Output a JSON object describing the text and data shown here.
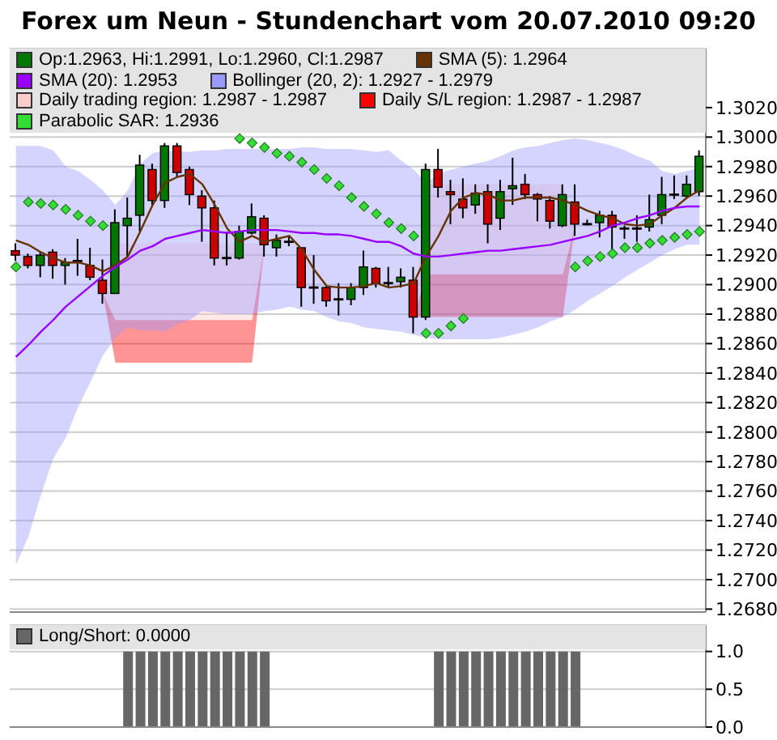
{
  "chart_data": [
    {
      "type": "candlestick",
      "title": "Forex um Neun - Stundenchart vom 20.07.2010 09:20",
      "legend": "top",
      "grid": "y",
      "tick_labels": "y",
      "categories": [
        null,
        null,
        null,
        null,
        null,
        null,
        null,
        null,
        null,
        null,
        null,
        null,
        null,
        null,
        null,
        null,
        null,
        null,
        null,
        null,
        null,
        null,
        null,
        null,
        null,
        null,
        null,
        null,
        null,
        null,
        null,
        null,
        null,
        null,
        null,
        null,
        null,
        null,
        null,
        null,
        null,
        null,
        null,
        null,
        null,
        null,
        null,
        null,
        null,
        null,
        null,
        null,
        null,
        null,
        null,
        null
      ],
      "ylim": [
        1.2678,
        1.306
      ],
      "yticks": [
        {
          "value": 1.268,
          "label": "1.2680"
        },
        {
          "value": 1.27,
          "label": "1.2700"
        },
        {
          "value": 1.272,
          "label": "1.2720"
        },
        {
          "value": 1.274,
          "label": "1.2740"
        },
        {
          "value": 1.276,
          "label": "1.2760"
        },
        {
          "value": 1.278,
          "label": "1.2780"
        },
        {
          "value": 1.28,
          "label": "1.2800"
        },
        {
          "value": 1.282,
          "label": "1.2820"
        },
        {
          "value": 1.284,
          "label": "1.2840"
        },
        {
          "value": 1.286,
          "label": "1.2860"
        },
        {
          "value": 1.288,
          "label": "1.2880"
        },
        {
          "value": 1.29,
          "label": "1.2900"
        },
        {
          "value": 1.292,
          "label": "1.2920"
        },
        {
          "value": 1.294,
          "label": "1.2940"
        },
        {
          "value": 1.296,
          "label": "1.2960"
        },
        {
          "value": 1.298,
          "label": "1.2980"
        },
        {
          "value": 1.3,
          "label": "1.3000"
        },
        {
          "value": 1.302,
          "label": "1.3020"
        }
      ],
      "series": [
        {
          "name": "Op:1.2963, Hi:1.2991, Lo:1.2960, Cl:1.2987",
          "color": "#007700",
          "colors": [
            "#cc0000",
            "#cc0000",
            "#007700",
            "#cc0000",
            "#007700",
            "#000000",
            "#cc0000",
            "#cc0000",
            "#007700",
            "#007700",
            "#007700",
            "#cc0000",
            "#007700",
            "#cc0000",
            "#cc0000",
            "#cc0000",
            "#cc0000",
            "#000000",
            "#007700",
            "#007700",
            "#cc0000",
            "#007700",
            "#000000",
            "#cc0000",
            "#000000",
            "#cc0000",
            "#000000",
            "#007700",
            "#007700",
            "#cc0000",
            "#000000",
            "#007700",
            "#cc0000",
            "#007700",
            "#cc0000",
            "#cc0000",
            "#cc0000",
            "#007700",
            "#cc0000",
            "#007700",
            "#007700",
            "#cc0000",
            "#cc0000",
            "#cc0000",
            "#007700",
            "#cc0000",
            "#000000",
            "#007700",
            "#cc0000",
            "#000000",
            "#000000",
            "#007700",
            "#007700",
            "#000000",
            "#007700",
            "#007700"
          ],
          "ohlc": [
            [
              1.2923,
              1.2928,
              1.2916,
              1.292
            ],
            [
              1.2919,
              1.2921,
              1.2911,
              1.2913
            ],
            [
              1.2913,
              1.2922,
              1.2905,
              1.292
            ],
            [
              1.2922,
              1.2924,
              1.2904,
              1.2913
            ],
            [
              1.2913,
              1.2918,
              1.29,
              1.2915
            ],
            [
              1.2916,
              1.2931,
              1.2906,
              1.2916
            ],
            [
              1.2913,
              1.2925,
              1.2903,
              1.2905
            ],
            [
              1.2903,
              1.2917,
              1.2887,
              1.2894
            ],
            [
              1.2894,
              1.2951,
              1.2894,
              1.2942
            ],
            [
              1.294,
              1.2959,
              1.2919,
              1.2945
            ],
            [
              1.2947,
              1.2988,
              1.2936,
              1.2981
            ],
            [
              1.2978,
              1.2982,
              1.2954,
              1.2957
            ],
            [
              1.2957,
              1.2996,
              1.2952,
              1.2994
            ],
            [
              1.2994,
              1.2996,
              1.2973,
              1.2976
            ],
            [
              1.2978,
              1.298,
              1.2954,
              1.2961
            ],
            [
              1.296,
              1.2964,
              1.2929,
              1.2952
            ],
            [
              1.2952,
              1.2957,
              1.2913,
              1.2918
            ],
            [
              1.2918,
              1.2936,
              1.2913,
              1.2918
            ],
            [
              1.2918,
              1.294,
              1.2917,
              1.2936
            ],
            [
              1.2935,
              1.2955,
              1.2934,
              1.2946
            ],
            [
              1.2945,
              1.2947,
              1.2919,
              1.2927
            ],
            [
              1.2925,
              1.2934,
              1.2919,
              1.293
            ],
            [
              1.2929,
              1.2933,
              1.2926,
              1.2929
            ],
            [
              1.2925,
              1.2925,
              1.2885,
              1.2898
            ],
            [
              1.2898,
              1.292,
              1.2887,
              1.2898
            ],
            [
              1.2898,
              1.2899,
              1.2885,
              1.2889
            ],
            [
              1.289,
              1.2901,
              1.2879,
              1.289
            ],
            [
              1.289,
              1.2901,
              1.2886,
              1.2898
            ],
            [
              1.2898,
              1.2923,
              1.2893,
              1.2912
            ],
            [
              1.2911,
              1.2912,
              1.2898,
              1.2901
            ],
            [
              1.2901,
              1.2912,
              1.2898,
              1.2901
            ],
            [
              1.2902,
              1.2911,
              1.2898,
              1.2905
            ],
            [
              1.2903,
              1.2912,
              1.2867,
              1.2878
            ],
            [
              1.2878,
              1.2982,
              1.2876,
              1.2978
            ],
            [
              1.2978,
              1.2992,
              1.2959,
              1.2966
            ],
            [
              1.2963,
              1.2971,
              1.2941,
              1.2961
            ],
            [
              1.2958,
              1.2972,
              1.2945,
              1.2952
            ],
            [
              1.2954,
              1.2968,
              1.2948,
              1.2962
            ],
            [
              1.2963,
              1.2968,
              1.2928,
              1.2941
            ],
            [
              1.2945,
              1.2971,
              1.2937,
              1.2963
            ],
            [
              1.2965,
              1.2986,
              1.2954,
              1.2967
            ],
            [
              1.2968,
              1.2975,
              1.2958,
              1.2961
            ],
            [
              1.2961,
              1.2962,
              1.2943,
              1.2958
            ],
            [
              1.2957,
              1.296,
              1.2938,
              1.2943
            ],
            [
              1.294,
              1.2968,
              1.2939,
              1.2961
            ],
            [
              1.2956,
              1.2968,
              1.2933,
              1.2941
            ],
            [
              1.2941,
              1.2944,
              1.294,
              1.2941
            ],
            [
              1.2942,
              1.295,
              1.2932,
              1.2947
            ],
            [
              1.2947,
              1.295,
              1.2921,
              1.2939
            ],
            [
              1.2938,
              1.294,
              1.2931,
              1.2938
            ],
            [
              1.2938,
              1.2947,
              1.2929,
              1.2938
            ],
            [
              1.2939,
              1.2961,
              1.2936,
              1.2944
            ],
            [
              1.2947,
              1.2973,
              1.2941,
              1.2961
            ],
            [
              1.2961,
              1.2974,
              1.2958,
              1.2961
            ],
            [
              1.296,
              1.2974,
              1.2959,
              1.2968
            ],
            [
              1.2963,
              1.2991,
              1.296,
              1.2987
            ]
          ]
        },
        {
          "type": "line",
          "name": "SMA (5): 1.2964",
          "color": "#663300",
          "values": [
            1.293,
            1.2927,
            1.2922,
            1.2918,
            1.2915,
            1.2915,
            1.2913,
            1.2909,
            1.2913,
            1.2919,
            1.2936,
            1.2954,
            1.2969,
            1.2973,
            1.2975,
            1.2968,
            1.2954,
            1.2938,
            1.2929,
            1.2933,
            1.2929,
            1.2931,
            1.2933,
            1.2924,
            1.291,
            1.2899,
            1.2898,
            1.2898,
            1.2899,
            1.2901,
            1.2898,
            1.2899,
            1.2901,
            1.2919,
            1.2933,
            1.295,
            1.2959,
            1.2962,
            1.2961,
            1.2957,
            1.2957,
            1.2959,
            1.2959,
            1.2959,
            1.2957,
            1.2954,
            1.295,
            1.2947,
            1.2945,
            1.2941,
            1.294,
            1.2941,
            1.2947,
            1.2952,
            1.2959,
            1.2964
          ]
        },
        {
          "type": "line",
          "name": "SMA (20): 1.2953",
          "color": "#9900ff",
          "values": [
            1.2851,
            1.2859,
            1.2868,
            1.2876,
            1.2885,
            1.2892,
            1.2899,
            1.2906,
            1.2912,
            1.2917,
            1.2923,
            1.2926,
            1.2931,
            1.2933,
            1.2935,
            1.2937,
            1.2936,
            1.2935,
            1.2936,
            1.2937,
            1.2937,
            1.2937,
            1.2936,
            1.2935,
            1.2935,
            1.2934,
            1.2934,
            1.2933,
            1.2931,
            1.2929,
            1.2929,
            1.2926,
            1.2921,
            1.2919,
            1.2919,
            1.292,
            1.2921,
            1.2922,
            1.2923,
            1.2923,
            1.2924,
            1.2925,
            1.2926,
            1.2927,
            1.2929,
            1.2931,
            1.2933,
            1.2936,
            1.294,
            1.2942,
            1.2945,
            1.2947,
            1.295,
            1.2952,
            1.2953,
            1.2953
          ]
        },
        {
          "type": "line",
          "name": "Bollinger (20, 2): 1.2927 - 1.2979",
          "color": "#9999ff",
          "values": [
            null,
            null,
            null,
            null,
            null,
            null,
            null,
            null,
            null,
            null,
            null,
            null,
            null,
            null,
            null,
            null,
            null,
            null,
            null,
            null,
            null,
            null,
            null,
            null,
            null,
            null,
            null,
            null,
            null,
            null,
            null,
            null,
            null,
            null,
            null,
            null,
            null,
            null,
            null,
            null,
            null,
            null,
            null,
            null,
            null,
            null,
            null,
            null,
            null,
            null,
            null,
            null,
            null,
            null,
            null,
            null
          ],
          "upper": [
            1.2994,
            1.2994,
            1.2994,
            1.2991,
            1.298,
            1.2977,
            1.2971,
            1.2964,
            1.2954,
            1.2964,
            1.2982,
            1.2989,
            1.2991,
            1.299,
            1.299,
            1.2991,
            1.2991,
            1.2992,
            1.2992,
            1.2992,
            1.2992,
            1.2992,
            1.2992,
            1.2993,
            1.2993,
            1.2992,
            1.2992,
            1.2992,
            1.2991,
            1.299,
            1.2991,
            1.2984,
            1.2978,
            1.2969,
            1.2975,
            1.2978,
            1.298,
            1.2982,
            1.2984,
            1.2987,
            1.2991,
            1.2993,
            1.2994,
            1.2996,
            1.2998,
            1.2999,
            1.2998,
            1.2996,
            1.2994,
            1.2991,
            1.2987,
            1.2984,
            1.2977,
            1.2975,
            1.2977,
            1.2979
          ],
          "lower": [
            1.271,
            1.2729,
            1.2757,
            1.2782,
            1.2796,
            1.2817,
            1.2834,
            1.2852,
            1.2864,
            1.2871,
            1.2869,
            1.2869,
            1.2868,
            1.2873,
            1.2876,
            1.2882,
            1.2881,
            1.288,
            1.288,
            1.288,
            1.2882,
            1.2883,
            1.2885,
            1.2883,
            1.2882,
            1.2878,
            1.2875,
            1.2874,
            1.2871,
            1.287,
            1.2869,
            1.2868,
            1.2866,
            1.2864,
            1.2863,
            1.2863,
            1.2863,
            1.2863,
            1.2863,
            1.2864,
            1.2866,
            1.2868,
            1.2871,
            1.2875,
            1.2878,
            1.2883,
            1.2889,
            1.2894,
            1.2899,
            1.2905,
            1.291,
            1.2915,
            1.292,
            1.2924,
            1.2927,
            1.2927
          ]
        },
        {
          "type": "line",
          "name": "Daily trading region: 1.2987 - 1.2987",
          "color": "#ffcccc",
          "values": [
            null,
            null,
            null,
            null,
            null,
            null,
            null,
            null,
            null,
            null,
            null,
            null,
            null,
            null,
            null,
            null,
            null,
            null,
            null,
            null,
            null,
            null,
            null,
            null,
            null,
            null,
            null,
            null,
            null,
            null,
            null,
            null,
            null,
            null,
            null,
            null,
            null,
            null,
            null,
            null,
            null,
            null,
            null,
            null,
            null,
            null,
            null,
            null,
            null,
            null,
            null,
            null,
            null,
            null,
            null,
            null
          ],
          "upper": [
            null,
            null,
            null,
            null,
            null,
            null,
            null,
            1.2894,
            1.2928,
            1.2928,
            1.2928,
            1.2928,
            1.2928,
            1.2928,
            1.2928,
            1.2928,
            1.2928,
            1.2928,
            1.2928,
            1.2928,
            1.2927,
            null,
            null,
            null,
            null,
            null,
            null,
            null,
            null,
            null,
            null,
            null,
            1.2878,
            1.2968,
            1.2968,
            1.2968,
            1.2968,
            1.2968,
            1.2968,
            1.2968,
            1.2968,
            1.2968,
            1.2968,
            1.2968,
            1.2968,
            1.2941,
            null,
            null,
            null,
            null,
            null,
            null,
            null,
            null,
            null,
            null
          ],
          "lower": [
            null,
            null,
            null,
            null,
            null,
            null,
            null,
            1.2894,
            1.2876,
            1.2876,
            1.2876,
            1.2876,
            1.2876,
            1.2876,
            1.2876,
            1.2876,
            1.2876,
            1.2876,
            1.2876,
            1.2876,
            1.2927,
            null,
            null,
            null,
            null,
            null,
            null,
            null,
            null,
            null,
            null,
            null,
            1.2878,
            1.2907,
            1.2907,
            1.2907,
            1.2907,
            1.2907,
            1.2907,
            1.2907,
            1.2907,
            1.2907,
            1.2907,
            1.2907,
            1.2907,
            1.2941,
            null,
            null,
            null,
            null,
            null,
            null,
            null,
            null,
            null,
            null
          ]
        },
        {
          "type": "line",
          "name": "Daily S/L region: 1.2987 - 1.2987",
          "color": "#ff0000",
          "values": [
            null,
            null,
            null,
            null,
            null,
            null,
            null,
            null,
            null,
            null,
            null,
            null,
            null,
            null,
            null,
            null,
            null,
            null,
            null,
            null,
            null,
            null,
            null,
            null,
            null,
            null,
            null,
            null,
            null,
            null,
            null,
            null,
            null,
            null,
            null,
            null,
            null,
            null,
            null,
            null,
            null,
            null,
            null,
            null,
            null,
            null,
            null,
            null,
            null,
            null,
            null,
            null,
            null,
            null,
            null,
            null
          ],
          "upper": [
            null,
            null,
            null,
            null,
            null,
            null,
            null,
            1.2894,
            1.2876,
            1.2876,
            1.2876,
            1.2876,
            1.2876,
            1.2876,
            1.2876,
            1.2876,
            1.2876,
            1.2876,
            1.2876,
            1.2876,
            1.2927,
            null,
            null,
            null,
            null,
            null,
            null,
            null,
            null,
            null,
            null,
            null,
            1.2878,
            1.2907,
            1.2907,
            1.2907,
            1.2907,
            1.2907,
            1.2907,
            1.2907,
            1.2907,
            1.2907,
            1.2907,
            1.2907,
            1.2907,
            1.2941,
            null,
            null,
            null,
            null,
            null,
            null,
            null,
            null,
            null,
            null
          ],
          "lower": [
            null,
            null,
            null,
            null,
            null,
            null,
            null,
            1.2894,
            1.2847,
            1.2847,
            1.2847,
            1.2847,
            1.2847,
            1.2847,
            1.2847,
            1.2847,
            1.2847,
            1.2847,
            1.2847,
            1.2847,
            1.2927,
            null,
            null,
            null,
            null,
            null,
            null,
            null,
            null,
            null,
            null,
            null,
            1.2878,
            1.2878,
            1.2878,
            1.2878,
            1.2878,
            1.2878,
            1.2878,
            1.2878,
            1.2878,
            1.2878,
            1.2878,
            1.2878,
            1.2878,
            1.2941,
            null,
            null,
            null,
            null,
            null,
            null,
            null,
            null,
            null,
            null
          ]
        },
        {
          "type": "scatter",
          "name": "Parabolic SAR: 1.2936",
          "color": "#33dd33",
          "marker": "diamond",
          "values": [
            1.2912,
            1.2956,
            1.2955,
            1.2954,
            1.2951,
            1.2947,
            1.2943,
            1.294,
            null,
            null,
            null,
            null,
            null,
            null,
            null,
            null,
            null,
            null,
            1.2999,
            1.2996,
            1.2993,
            1.2989,
            1.2987,
            1.2983,
            1.2978,
            1.2972,
            1.2967,
            1.2959,
            1.2953,
            1.2948,
            1.2942,
            1.2938,
            1.2933,
            1.2867,
            1.2867,
            1.2872,
            1.2877,
            null,
            null,
            null,
            null,
            null,
            null,
            null,
            null,
            1.2912,
            1.2916,
            1.2919,
            1.2921,
            1.2925,
            1.2925,
            1.2928,
            1.293,
            1.2932,
            1.2934,
            1.2936
          ]
        }
      ]
    },
    {
      "type": "bar",
      "legend": "top",
      "grid": "y",
      "tick_labels": "y",
      "categories": [
        null,
        null,
        null,
        null,
        null,
        null,
        null,
        null,
        null,
        null,
        null,
        null,
        null,
        null,
        null,
        null,
        null,
        null,
        null,
        null,
        null,
        null,
        null,
        null,
        null,
        null,
        null,
        null,
        null,
        null,
        null,
        null,
        null,
        null,
        null,
        null,
        null,
        null,
        null,
        null,
        null,
        null,
        null,
        null,
        null,
        null,
        null,
        null,
        null,
        null,
        null,
        null,
        null,
        null,
        null,
        null
      ],
      "ylim": [
        0,
        1.35
      ],
      "yticks": [
        {
          "value": 0,
          "label": "0.0"
        },
        {
          "value": 0.5,
          "label": "0.5"
        },
        {
          "value": 1,
          "label": "1.0"
        }
      ],
      "series": [
        {
          "name": "Long/Short: 0.0000",
          "color": "#666666",
          "values": [
            0,
            0,
            0,
            0,
            0,
            0,
            0,
            0,
            0,
            1,
            1,
            1,
            1,
            1,
            1,
            1,
            1,
            1,
            1,
            1,
            1,
            0,
            0,
            0,
            0,
            0,
            0,
            0,
            0,
            0,
            0,
            0,
            0,
            0,
            1,
            1,
            1,
            1,
            1,
            1,
            1,
            1,
            1,
            1,
            1,
            1,
            0,
            0,
            0,
            0,
            0,
            0,
            0,
            0,
            0,
            0
          ]
        }
      ]
    }
  ]
}
